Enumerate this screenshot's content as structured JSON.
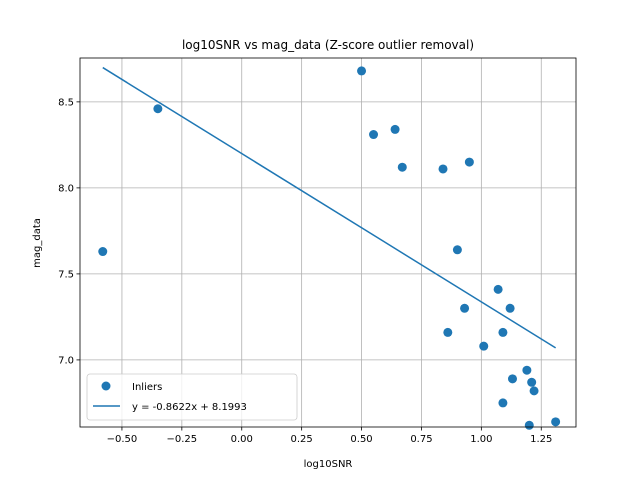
{
  "chart_data": {
    "type": "scatter",
    "title": "log10SNR vs mag_data (Z-score outlier removal)",
    "xlabel": "log10SNR",
    "ylabel": "mag_data",
    "xlim": [
      -0.675,
      1.395
    ],
    "ylim": [
      6.61,
      8.755
    ],
    "xticks": [
      -0.5,
      -0.25,
      0.0,
      0.25,
      0.5,
      0.75,
      1.0,
      1.25
    ],
    "xtick_labels": [
      "−0.50",
      "−0.25",
      "0.00",
      "0.25",
      "0.50",
      "0.75",
      "1.00",
      "1.25"
    ],
    "yticks": [
      7.0,
      7.5,
      8.0,
      8.5
    ],
    "ytick_labels": [
      "7.0",
      "7.5",
      "8.0",
      "8.5"
    ],
    "grid": true,
    "legend_position": "lower-left",
    "colors": {
      "points": "#1f77b4",
      "line": "#1f77b4"
    },
    "series": [
      {
        "name": "Inliers",
        "kind": "scatter",
        "x": [
          -0.58,
          -0.35,
          0.5,
          0.55,
          0.64,
          0.67,
          0.84,
          0.86,
          0.9,
          0.93,
          0.95,
          1.01,
          1.07,
          1.09,
          1.09,
          1.12,
          1.13,
          1.19,
          1.2,
          1.21,
          1.22,
          1.31
        ],
        "y": [
          7.63,
          8.46,
          8.68,
          8.31,
          8.34,
          8.12,
          8.11,
          7.16,
          7.64,
          7.3,
          8.15,
          7.08,
          7.41,
          7.16,
          6.75,
          7.3,
          6.89,
          6.94,
          6.62,
          6.87,
          6.82,
          6.64
        ]
      },
      {
        "name": "y = -0.8622x + 8.1993",
        "kind": "line",
        "slope": -0.8622,
        "intercept": 8.1993,
        "x_range": [
          -0.58,
          1.31
        ]
      }
    ]
  }
}
